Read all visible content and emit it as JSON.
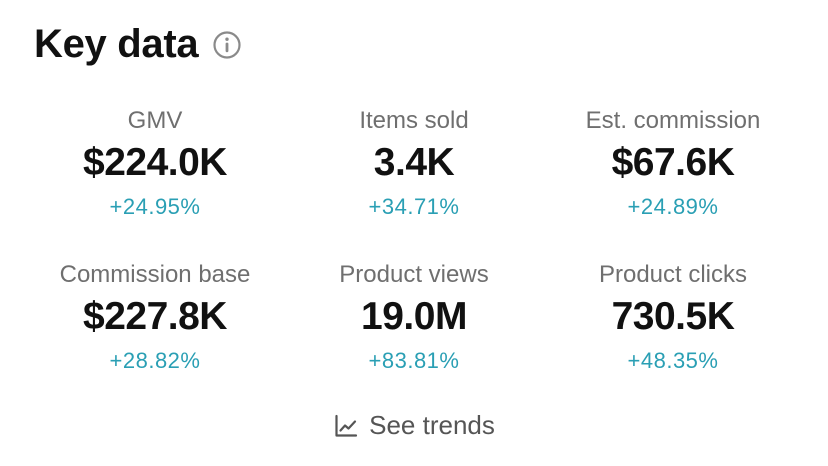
{
  "header": {
    "title": "Key data",
    "info_icon": "info-circle-icon"
  },
  "metrics": [
    {
      "label": "GMV",
      "value": "$224.0K",
      "change": "+24.95%"
    },
    {
      "label": "Items sold",
      "value": "3.4K",
      "change": "+34.71%"
    },
    {
      "label": "Est. commission",
      "value": "$67.6K",
      "change": "+24.89%"
    },
    {
      "label": "Commission base",
      "value": "$227.8K",
      "change": "+28.82%"
    },
    {
      "label": "Product views",
      "value": "19.0M",
      "change": "+83.81%"
    },
    {
      "label": "Product clicks",
      "value": "730.5K",
      "change": "+48.35%"
    }
  ],
  "footer": {
    "trends_label": "See trends",
    "trends_icon": "line-chart-icon"
  },
  "colors": {
    "change_positive": "#2a9fb4",
    "title": "#111111",
    "label": "#6f6f6f"
  }
}
